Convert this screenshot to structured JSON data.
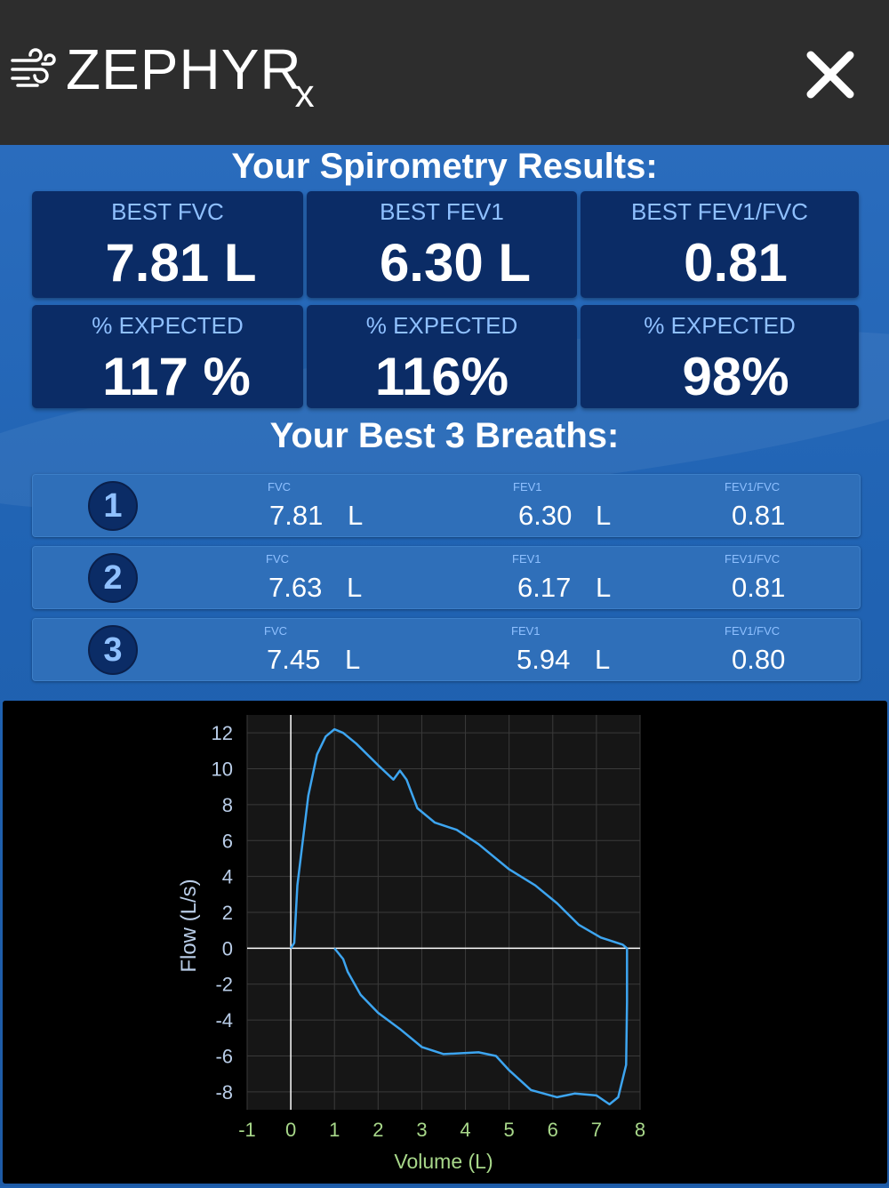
{
  "header": {
    "brand": "ZEPHYR",
    "brand_suffix": "x",
    "close_icon": "close-icon"
  },
  "results_title": "Your Spirometry Results:",
  "tiles": [
    {
      "label": "BEST FVC",
      "value": "7.81 L"
    },
    {
      "label": "BEST FEV1",
      "value": "6.30 L"
    },
    {
      "label": "BEST FEV1/FVC",
      "value": "0.81"
    },
    {
      "label": "% EXPECTED",
      "value": "117 %"
    },
    {
      "label": "% EXPECTED",
      "value": "116%"
    },
    {
      "label": "% EXPECTED",
      "value": "98%"
    }
  ],
  "breaths_title": "Your Best 3 Breaths:",
  "breaths": [
    {
      "rank": "1",
      "fvc_label": "FVC",
      "fvc": "7.81",
      "fvc_unit": "L",
      "fev1_label": "FEV1",
      "fev1": "6.30",
      "fev1_unit": "L",
      "ratio_label": "FEV1/FVC",
      "ratio": "0.81"
    },
    {
      "rank": "2",
      "fvc_label": "FVC",
      "fvc": "7.63",
      "fvc_unit": "L",
      "fev1_label": "FEV1",
      "fev1": "6.17",
      "fev1_unit": "L",
      "ratio_label": "FEV1/FVC",
      "ratio": "0.81"
    },
    {
      "rank": "3",
      "fvc_label": "FVC",
      "fvc": "7.45",
      "fvc_unit": "L",
      "fev1_label": "FEV1",
      "fev1": "5.94",
      "fev1_unit": "L",
      "ratio_label": "FEV1/FVC",
      "ratio": "0.80"
    }
  ],
  "colors": {
    "accent": "#8fc0ff",
    "tile_bg": "#0b2c66",
    "curve": "#3da5f0",
    "tick_x": "#a8d88a",
    "tick_y": "#b9cde8"
  },
  "chart_data": {
    "type": "line",
    "xlabel": "Volume (L)",
    "ylabel": "Flow (L/s)",
    "xlim": [
      -1,
      8
    ],
    "ylim": [
      -9,
      13
    ],
    "x_ticks": [
      "-1",
      "0",
      "1",
      "2",
      "3",
      "4",
      "5",
      "6",
      "7",
      "8"
    ],
    "y_ticks": [
      "12",
      "10",
      "8",
      "6",
      "4",
      "2",
      "0",
      "-2",
      "-4",
      "-6",
      "-8"
    ],
    "grid": true,
    "series": [
      {
        "values_expiratory": [
          [
            0,
            0
          ],
          [
            0.08,
            0.3
          ],
          [
            0.15,
            3.5
          ],
          [
            0.25,
            5.5
          ],
          [
            0.4,
            8.5
          ],
          [
            0.6,
            10.8
          ],
          [
            0.8,
            11.8
          ],
          [
            1.0,
            12.2
          ],
          [
            1.2,
            12.0
          ],
          [
            1.5,
            11.4
          ],
          [
            2.0,
            10.2
          ],
          [
            2.35,
            9.4
          ],
          [
            2.5,
            9.9
          ],
          [
            2.65,
            9.4
          ],
          [
            2.9,
            7.8
          ],
          [
            3.3,
            7.0
          ],
          [
            3.8,
            6.6
          ],
          [
            4.3,
            5.8
          ],
          [
            5.0,
            4.4
          ],
          [
            5.6,
            3.5
          ],
          [
            6.1,
            2.5
          ],
          [
            6.6,
            1.3
          ],
          [
            7.1,
            0.6
          ],
          [
            7.6,
            0.2
          ],
          [
            7.7,
            0
          ]
        ],
        "values_inspiratory": [
          [
            7.7,
            0
          ],
          [
            7.7,
            -3.0
          ],
          [
            7.68,
            -6.5
          ],
          [
            7.5,
            -8.3
          ],
          [
            7.3,
            -8.7
          ],
          [
            7.0,
            -8.2
          ],
          [
            6.5,
            -8.1
          ],
          [
            6.1,
            -8.3
          ],
          [
            5.5,
            -7.9
          ],
          [
            5.0,
            -6.8
          ],
          [
            4.7,
            -6.0
          ],
          [
            4.3,
            -5.8
          ],
          [
            3.5,
            -5.9
          ],
          [
            3.0,
            -5.5
          ],
          [
            2.5,
            -4.5
          ],
          [
            2.0,
            -3.6
          ],
          [
            1.6,
            -2.6
          ],
          [
            1.3,
            -1.3
          ],
          [
            1.2,
            -0.6
          ],
          [
            1.0,
            0
          ]
        ]
      }
    ]
  }
}
